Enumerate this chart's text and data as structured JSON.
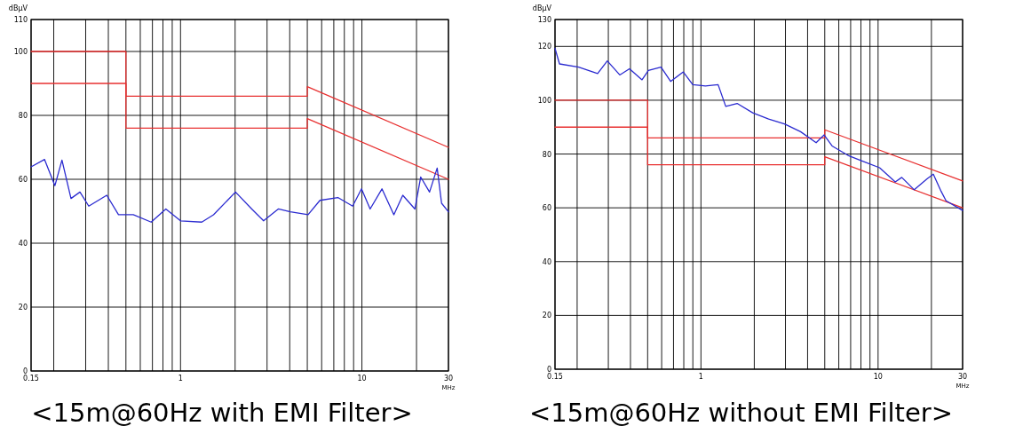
{
  "chart_data": [
    {
      "type": "line",
      "title": "<15m@60Hz with EMI Filter>",
      "xlabel": "MHz",
      "ylabel": "dBμV",
      "log": "x",
      "grid": true,
      "xlim": [
        0.15,
        30
      ],
      "ylim": [
        0,
        110
      ],
      "xticks": [
        {
          "value": 0.15,
          "label": "0.15"
        },
        {
          "value": 0.2,
          "label": null
        },
        {
          "value": 0.3,
          "label": null
        },
        {
          "value": 0.4,
          "label": null
        },
        {
          "value": 0.5,
          "label": null
        },
        {
          "value": 0.6,
          "label": null
        },
        {
          "value": 0.7,
          "label": null
        },
        {
          "value": 0.8,
          "label": null
        },
        {
          "value": 0.9,
          "label": null
        },
        1,
        {
          "value": 2,
          "label": null
        },
        {
          "value": 3,
          "label": null
        },
        {
          "value": 4,
          "label": null
        },
        {
          "value": 5,
          "label": null
        },
        {
          "value": 6,
          "label": null
        },
        {
          "value": 7,
          "label": null
        },
        {
          "value": 8,
          "label": null
        },
        {
          "value": 9,
          "label": null
        },
        10,
        {
          "value": 20,
          "label": null
        },
        30
      ],
      "yticks": [
        0,
        20,
        40,
        60,
        80,
        100,
        110
      ],
      "series": [
        {
          "color": "#e83030",
          "x": [
            0.15,
            0.5,
            0.5,
            5,
            5,
            30
          ],
          "values": [
            100,
            100,
            86,
            86,
            89,
            70
          ]
        },
        {
          "color": "#e83030",
          "x": [
            0.15,
            0.5,
            0.5,
            5,
            5,
            30
          ],
          "values": [
            90,
            90,
            76,
            76,
            79,
            60
          ]
        },
        {
          "color": "#2b2bd0",
          "x": [
            0.15,
            0.178,
            0.203,
            0.222,
            0.249,
            0.279,
            0.312,
            0.392,
            0.455,
            0.549,
            0.689,
            0.83,
            1.0,
            1.31,
            1.52,
            2.01,
            2.47,
            2.87,
            3.46,
            4.03,
            5.05,
            5.87,
            7.37,
            8.89,
            9.95,
            11.1,
            12.9,
            15.0,
            16.8,
            19.6,
            21.1,
            23.6,
            26.0,
            27.5,
            30
          ],
          "values": [
            63.9,
            66.2,
            58,
            66,
            54,
            56,
            51.6,
            55,
            48.9,
            48.9,
            46.6,
            50.7,
            47,
            46.6,
            48.9,
            56,
            50.7,
            47,
            50.7,
            49.8,
            48.9,
            53.4,
            54.3,
            51.6,
            57,
            50.7,
            57,
            48.9,
            55,
            50.7,
            60.7,
            56,
            63.5,
            52.5,
            49.8
          ]
        }
      ]
    },
    {
      "type": "line",
      "title": "<15m@60Hz without EMI Filter>",
      "xlabel": "MHz",
      "ylabel": "dBμV",
      "log": "x",
      "grid": true,
      "xlim": [
        0.15,
        30
      ],
      "ylim": [
        0,
        130
      ],
      "xticks": [
        {
          "value": 0.15,
          "label": "0.15"
        },
        {
          "value": 0.2,
          "label": null
        },
        {
          "value": 0.3,
          "label": null
        },
        {
          "value": 0.4,
          "label": null
        },
        {
          "value": 0.5,
          "label": null
        },
        {
          "value": 0.6,
          "label": null
        },
        {
          "value": 0.7,
          "label": null
        },
        {
          "value": 0.8,
          "label": null
        },
        {
          "value": 0.9,
          "label": null
        },
        1,
        {
          "value": 2,
          "label": null
        },
        {
          "value": 3,
          "label": null
        },
        {
          "value": 4,
          "label": null
        },
        {
          "value": 5,
          "label": null
        },
        {
          "value": 6,
          "label": null
        },
        {
          "value": 7,
          "label": null
        },
        {
          "value": 8,
          "label": null
        },
        {
          "value": 9,
          "label": null
        },
        10,
        {
          "value": 20,
          "label": null
        },
        30
      ],
      "yticks": [
        0,
        20,
        40,
        60,
        80,
        100,
        120,
        130
      ],
      "series": [
        {
          "color": "#e83030",
          "x": [
            0.15,
            0.5,
            0.5,
            5,
            5,
            30
          ],
          "values": [
            100,
            100,
            86,
            86,
            89,
            70
          ]
        },
        {
          "color": "#e83030",
          "x": [
            0.15,
            0.5,
            0.5,
            5,
            5,
            30
          ],
          "values": [
            90,
            90,
            76,
            76,
            79,
            60
          ]
        },
        {
          "color": "#2b2bd0",
          "x": [
            0.15,
            0.159,
            0.204,
            0.261,
            0.296,
            0.348,
            0.395,
            0.465,
            0.505,
            0.595,
            0.674,
            0.795,
            0.899,
            1.06,
            1.25,
            1.38,
            1.6,
            1.96,
            2.41,
            2.96,
            3.65,
            4.47,
            4.96,
            5.5,
            6.76,
            8.3,
            10.2,
            12.5,
            13.6,
            16.0,
            18.9,
            20.5,
            22.7,
            24.2,
            30
          ],
          "values": [
            119.3,
            113.5,
            112.3,
            109.9,
            114.6,
            109.4,
            111.7,
            107.6,
            111.1,
            112.3,
            107,
            110.5,
            105.8,
            105.3,
            105.8,
            97.7,
            98.8,
            95.3,
            93,
            91.2,
            88.3,
            84.2,
            87.1,
            83,
            79.5,
            77.2,
            74.9,
            69.6,
            71.3,
            66.7,
            70.8,
            72.5,
            66.1,
            62.6,
            59
          ]
        }
      ]
    }
  ]
}
